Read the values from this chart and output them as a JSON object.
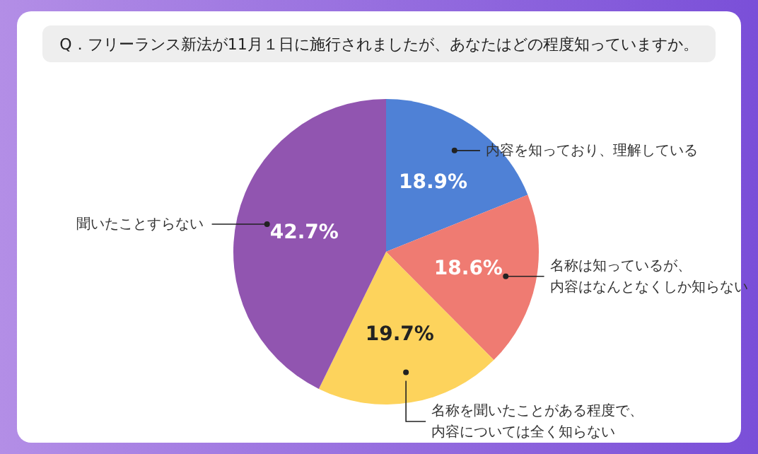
{
  "chart_data": {
    "type": "pie",
    "title": "Q．フリーランス新法が11月１日に施行されましたが、あなたはどの程度知っていますか。",
    "categories": [
      "内容を知っており、理解している",
      "名称は知っているが、内容はなんとなくしか知らない",
      "名称を聞いたことがある程度で、内容については全く知らない",
      "聞いたことすらない"
    ],
    "values": [
      18.9,
      18.6,
      19.7,
      42.7
    ],
    "colors": [
      "#4f81d6",
      "#ef7b72",
      "#fdd35c",
      "#9155b0"
    ],
    "value_labels": [
      "18.9%",
      "18.6%",
      "19.7%",
      "42.7%"
    ]
  }
}
